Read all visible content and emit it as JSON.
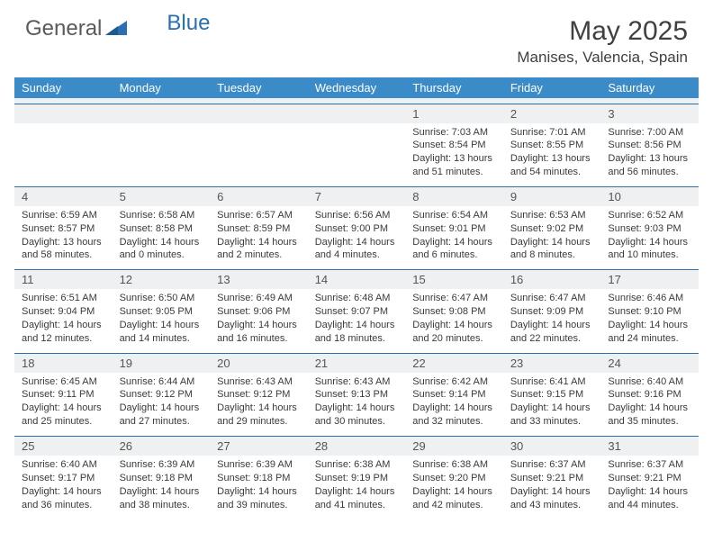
{
  "brand": {
    "part1": "General",
    "part2": "Blue"
  },
  "title": "May 2025",
  "location": "Manises, Valencia, Spain",
  "colors": {
    "header_bg": "#3b8bc9",
    "sep_line": "#2a6fb0",
    "daynum_bg": "#eef0f1",
    "text": "#3a3a3a",
    "logo_gray": "#5a5a5a",
    "logo_blue": "#2a6fb0",
    "page_bg": "#ffffff"
  },
  "typography": {
    "title_fontsize": 30,
    "location_fontsize": 17,
    "dayheader_fontsize": 13,
    "daynum_fontsize": 13,
    "detail_fontsize": 11
  },
  "day_headers": [
    "Sunday",
    "Monday",
    "Tuesday",
    "Wednesday",
    "Thursday",
    "Friday",
    "Saturday"
  ],
  "weeks": [
    {
      "nums": [
        "",
        "",
        "",
        "",
        "1",
        "2",
        "3"
      ],
      "cells": [
        null,
        null,
        null,
        null,
        {
          "sunrise": "7:03 AM",
          "sunset": "8:54 PM",
          "dl_h": "13",
          "dl_m": "51"
        },
        {
          "sunrise": "7:01 AM",
          "sunset": "8:55 PM",
          "dl_h": "13",
          "dl_m": "54"
        },
        {
          "sunrise": "7:00 AM",
          "sunset": "8:56 PM",
          "dl_h": "13",
          "dl_m": "56"
        }
      ]
    },
    {
      "nums": [
        "4",
        "5",
        "6",
        "7",
        "8",
        "9",
        "10"
      ],
      "cells": [
        {
          "sunrise": "6:59 AM",
          "sunset": "8:57 PM",
          "dl_h": "13",
          "dl_m": "58"
        },
        {
          "sunrise": "6:58 AM",
          "sunset": "8:58 PM",
          "dl_h": "14",
          "dl_m": "0"
        },
        {
          "sunrise": "6:57 AM",
          "sunset": "8:59 PM",
          "dl_h": "14",
          "dl_m": "2"
        },
        {
          "sunrise": "6:56 AM",
          "sunset": "9:00 PM",
          "dl_h": "14",
          "dl_m": "4"
        },
        {
          "sunrise": "6:54 AM",
          "sunset": "9:01 PM",
          "dl_h": "14",
          "dl_m": "6"
        },
        {
          "sunrise": "6:53 AM",
          "sunset": "9:02 PM",
          "dl_h": "14",
          "dl_m": "8"
        },
        {
          "sunrise": "6:52 AM",
          "sunset": "9:03 PM",
          "dl_h": "14",
          "dl_m": "10"
        }
      ]
    },
    {
      "nums": [
        "11",
        "12",
        "13",
        "14",
        "15",
        "16",
        "17"
      ],
      "cells": [
        {
          "sunrise": "6:51 AM",
          "sunset": "9:04 PM",
          "dl_h": "14",
          "dl_m": "12"
        },
        {
          "sunrise": "6:50 AM",
          "sunset": "9:05 PM",
          "dl_h": "14",
          "dl_m": "14"
        },
        {
          "sunrise": "6:49 AM",
          "sunset": "9:06 PM",
          "dl_h": "14",
          "dl_m": "16"
        },
        {
          "sunrise": "6:48 AM",
          "sunset": "9:07 PM",
          "dl_h": "14",
          "dl_m": "18"
        },
        {
          "sunrise": "6:47 AM",
          "sunset": "9:08 PM",
          "dl_h": "14",
          "dl_m": "20"
        },
        {
          "sunrise": "6:47 AM",
          "sunset": "9:09 PM",
          "dl_h": "14",
          "dl_m": "22"
        },
        {
          "sunrise": "6:46 AM",
          "sunset": "9:10 PM",
          "dl_h": "14",
          "dl_m": "24"
        }
      ]
    },
    {
      "nums": [
        "18",
        "19",
        "20",
        "21",
        "22",
        "23",
        "24"
      ],
      "cells": [
        {
          "sunrise": "6:45 AM",
          "sunset": "9:11 PM",
          "dl_h": "14",
          "dl_m": "25"
        },
        {
          "sunrise": "6:44 AM",
          "sunset": "9:12 PM",
          "dl_h": "14",
          "dl_m": "27"
        },
        {
          "sunrise": "6:43 AM",
          "sunset": "9:12 PM",
          "dl_h": "14",
          "dl_m": "29"
        },
        {
          "sunrise": "6:43 AM",
          "sunset": "9:13 PM",
          "dl_h": "14",
          "dl_m": "30"
        },
        {
          "sunrise": "6:42 AM",
          "sunset": "9:14 PM",
          "dl_h": "14",
          "dl_m": "32"
        },
        {
          "sunrise": "6:41 AM",
          "sunset": "9:15 PM",
          "dl_h": "14",
          "dl_m": "33"
        },
        {
          "sunrise": "6:40 AM",
          "sunset": "9:16 PM",
          "dl_h": "14",
          "dl_m": "35"
        }
      ]
    },
    {
      "nums": [
        "25",
        "26",
        "27",
        "28",
        "29",
        "30",
        "31"
      ],
      "cells": [
        {
          "sunrise": "6:40 AM",
          "sunset": "9:17 PM",
          "dl_h": "14",
          "dl_m": "36"
        },
        {
          "sunrise": "6:39 AM",
          "sunset": "9:18 PM",
          "dl_h": "14",
          "dl_m": "38"
        },
        {
          "sunrise": "6:39 AM",
          "sunset": "9:18 PM",
          "dl_h": "14",
          "dl_m": "39"
        },
        {
          "sunrise": "6:38 AM",
          "sunset": "9:19 PM",
          "dl_h": "14",
          "dl_m": "41"
        },
        {
          "sunrise": "6:38 AM",
          "sunset": "9:20 PM",
          "dl_h": "14",
          "dl_m": "42"
        },
        {
          "sunrise": "6:37 AM",
          "sunset": "9:21 PM",
          "dl_h": "14",
          "dl_m": "43"
        },
        {
          "sunrise": "6:37 AM",
          "sunset": "9:21 PM",
          "dl_h": "14",
          "dl_m": "44"
        }
      ]
    }
  ],
  "labels": {
    "sunrise": "Sunrise:",
    "sunset": "Sunset:",
    "daylight_prefix": "Daylight:",
    "hours_word": "hours",
    "and_word": "and",
    "minutes_word": "minutes."
  }
}
